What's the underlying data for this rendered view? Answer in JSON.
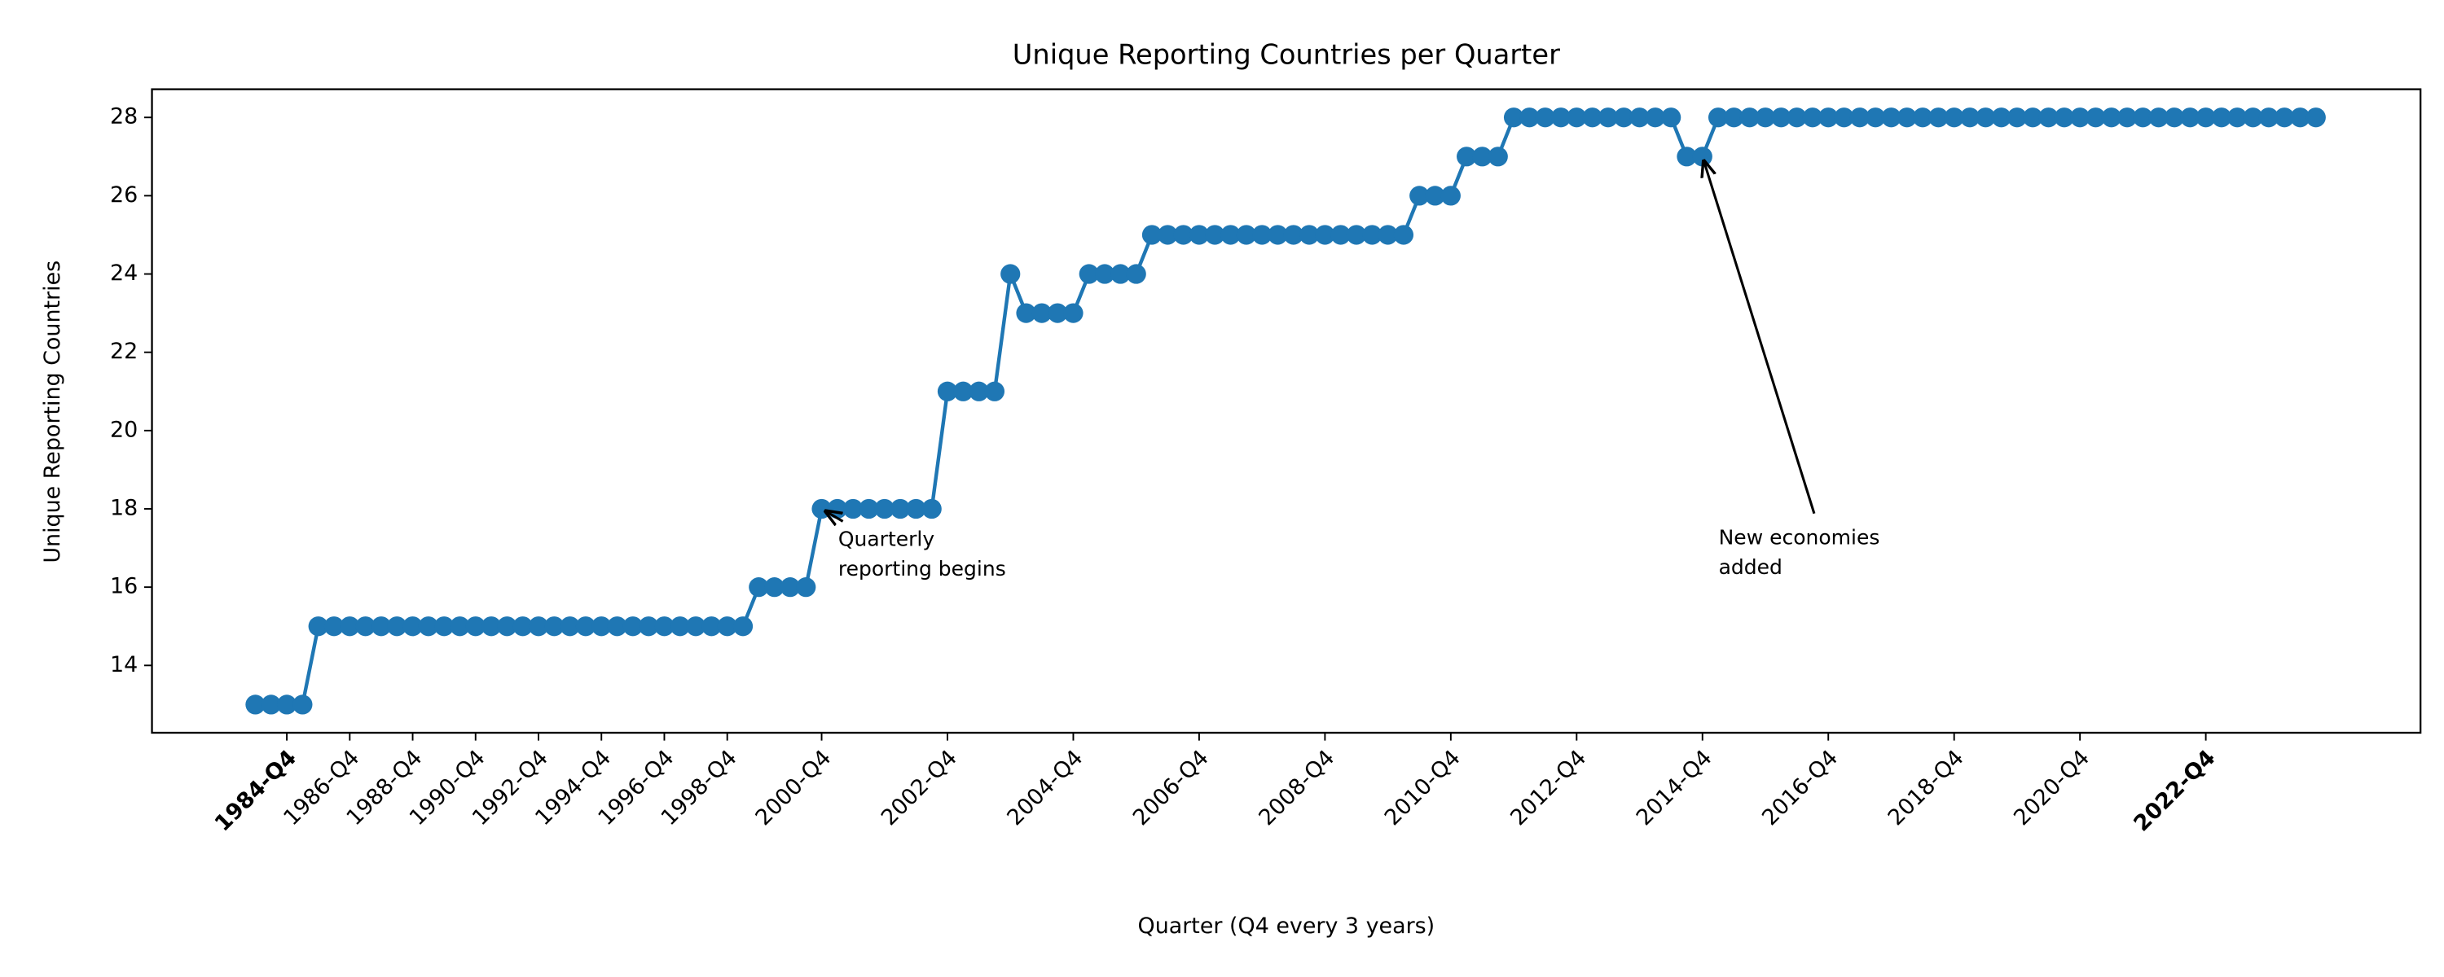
{
  "chart_data": {
    "type": "line",
    "title": "Unique Reporting Countries per Quarter",
    "x_label": "Quarter (Q4 every 3 years)",
    "y_label": "Unique Reporting Countries",
    "categories": [
      null,
      null,
      "1984-Q4",
      null,
      null,
      null,
      "1986-Q4",
      null,
      null,
      null,
      "1988-Q4",
      null,
      null,
      null,
      "1990-Q4",
      null,
      null,
      null,
      "1992-Q4",
      null,
      null,
      null,
      "1994-Q4",
      null,
      null,
      null,
      "1996-Q4",
      null,
      null,
      null,
      "1998-Q4",
      null,
      null,
      null,
      null,
      null,
      "2000-Q4",
      null,
      null,
      null,
      null,
      null,
      null,
      null,
      "2002-Q4",
      null,
      null,
      null,
      null,
      null,
      null,
      null,
      "2004-Q4",
      null,
      null,
      null,
      null,
      null,
      null,
      null,
      "2006-Q4",
      null,
      null,
      null,
      null,
      null,
      null,
      null,
      "2008-Q4",
      null,
      null,
      null,
      null,
      null,
      null,
      null,
      "2010-Q4",
      null,
      null,
      null,
      null,
      null,
      null,
      null,
      "2012-Q4",
      null,
      null,
      null,
      null,
      null,
      null,
      null,
      "2014-Q4",
      null,
      null,
      null,
      null,
      null,
      null,
      null,
      "2016-Q4",
      null,
      null,
      null,
      null,
      null,
      null,
      null,
      "2018-Q4",
      null,
      null,
      null,
      null,
      null,
      null,
      null,
      "2020-Q4",
      null,
      null,
      null,
      null,
      null,
      null,
      null,
      "2022-Q4",
      null,
      null,
      null,
      null,
      null,
      null,
      null
    ],
    "values": [
      13,
      13,
      13,
      13,
      15,
      15,
      15,
      15,
      15,
      15,
      15,
      15,
      15,
      15,
      15,
      15,
      15,
      15,
      15,
      15,
      15,
      15,
      15,
      15,
      15,
      15,
      15,
      15,
      15,
      15,
      15,
      15,
      16,
      16,
      16,
      16,
      18,
      18,
      18,
      18,
      18,
      18,
      18,
      18,
      21,
      21,
      21,
      21,
      24,
      23,
      23,
      23,
      23,
      24,
      24,
      24,
      24,
      25,
      25,
      25,
      25,
      25,
      25,
      25,
      25,
      25,
      25,
      25,
      25,
      25,
      25,
      25,
      25,
      25,
      26,
      26,
      26,
      27,
      27,
      27,
      28,
      28,
      28,
      28,
      28,
      28,
      28,
      28,
      28,
      28,
      28,
      27,
      27,
      28,
      28,
      28,
      28,
      28,
      28,
      28,
      28,
      28,
      28,
      28,
      28,
      28,
      28,
      28,
      28,
      28,
      28,
      28,
      28,
      28,
      28,
      28,
      28,
      28,
      28,
      28,
      28,
      28,
      28,
      28,
      28,
      28,
      28,
      28,
      28,
      28,
      28,
      28
    ],
    "color": "#1f77b4",
    "marker": "circle",
    "bold_first_last_tick": true,
    "ylim": [
      12.28,
      28.72
    ],
    "yticks": [
      14,
      16,
      18,
      20,
      22,
      24,
      26,
      28
    ],
    "grid": false,
    "annotations": [
      {
        "lines": [
          "Quarterly",
          "reporting begins"
        ]
      },
      {
        "lines": [
          "New economies",
          "added"
        ]
      }
    ]
  }
}
